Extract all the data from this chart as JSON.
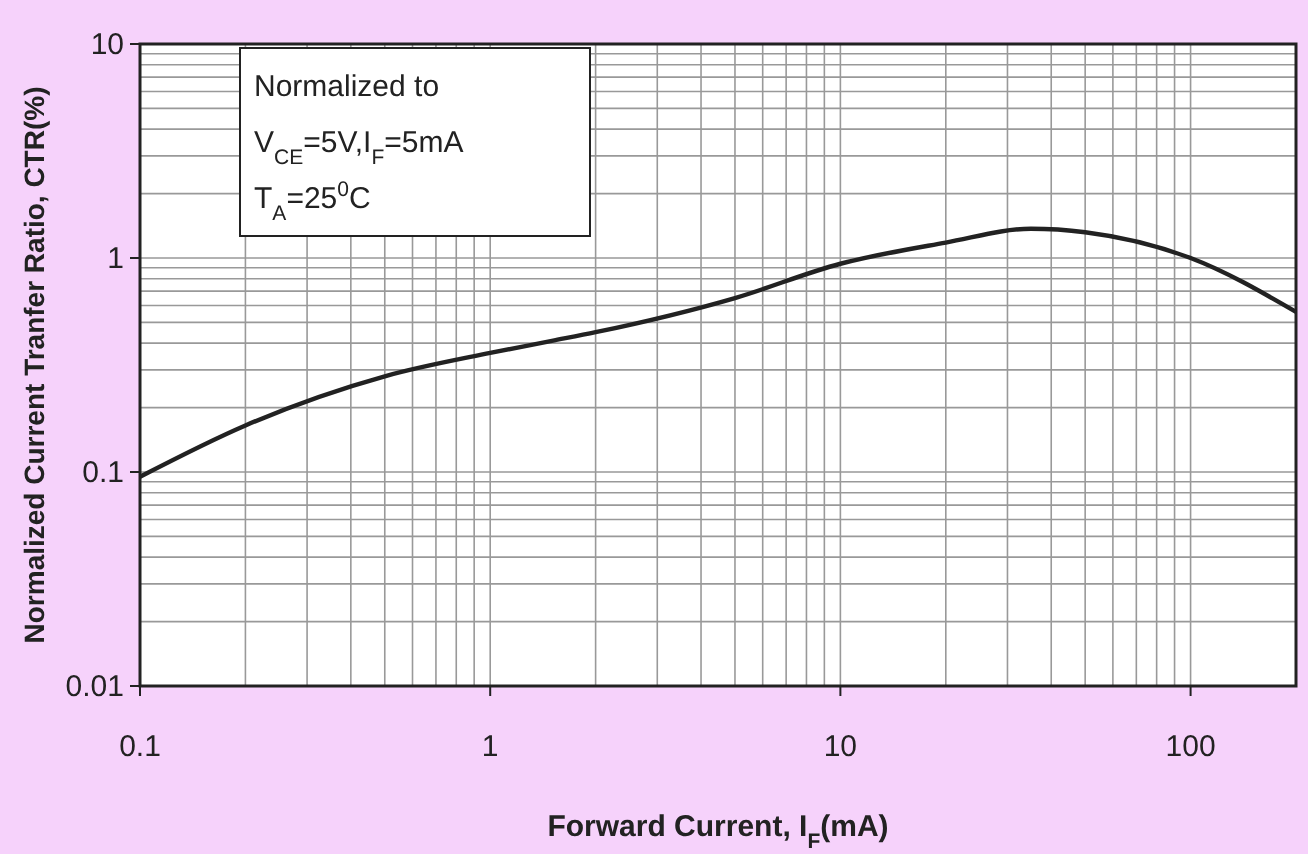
{
  "chart_data": {
    "type": "line",
    "xlabel": "Forward Current, I$_{F}$(mA)",
    "ylabel": "Normalized Current Tranfer Ratio, CTR(%)",
    "annotations": [
      "Normalized to",
      "V$_{CE}$=5V,I$_{F}$=5mA",
      "T$_{A}$=25$^{0}$C"
    ],
    "x": [
      0.1,
      0.2,
      0.5,
      1,
      1.5,
      2,
      5,
      10,
      20,
      35,
      50,
      100,
      200
    ],
    "series": [
      {
        "color": "#222222",
        "values": [
          0.095,
          0.165,
          0.28,
          0.36,
          0.41,
          0.45,
          0.65,
          0.94,
          1.18,
          1.37,
          1.32,
          1.0,
          0.56
        ]
      }
    ],
    "log": "xy",
    "xlim": [
      0.1,
      200
    ],
    "ylim": [
      0.01,
      10
    ],
    "xticks": [
      0.1,
      1,
      10,
      100
    ],
    "yticks": [
      0.01,
      0.1,
      1,
      10
    ],
    "grid": true,
    "marker": "none",
    "line_style": "solid"
  }
}
